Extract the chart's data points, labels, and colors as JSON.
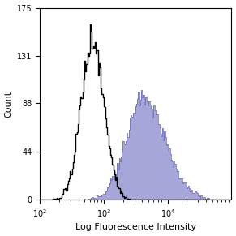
{
  "title": "",
  "xlabel": "Log Fluorescence Intensity",
  "ylabel": "Count",
  "xscale": "log",
  "xlim": [
    100,
    100000
  ],
  "ylim": [
    0,
    175
  ],
  "yticks": [
    0,
    44,
    88,
    131,
    175
  ],
  "xtick_positions": [
    100,
    1000,
    10000
  ],
  "background_color": "#ffffff",
  "isotype_color": "black",
  "isotype_lw": 1.0,
  "antibody_edge_color": "#6666bb",
  "antibody_fill_color": "#8888cc",
  "antibody_fill_alpha": 0.75,
  "iso_log_mean": 2.82,
  "iso_log_std": 0.18,
  "iso_peak_height": 160,
  "iso_n_bins": 200,
  "ab_log_mean": 3.72,
  "ab_log_std": 0.32,
  "ab_peak_height": 100,
  "ab_n_bins": 200,
  "n_samples": 15000,
  "seed": 77
}
